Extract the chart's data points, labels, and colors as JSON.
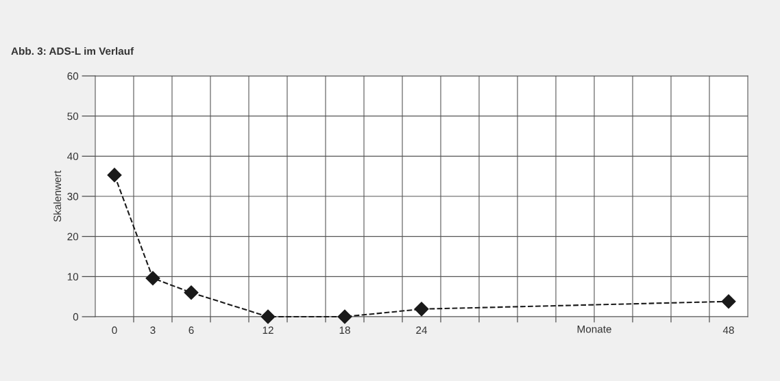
{
  "chart_data": {
    "type": "line",
    "title": "Abb. 3: ADS-L im Verlauf",
    "xlabel": "Monate",
    "ylabel": "Skalenwert",
    "x": [
      0,
      3,
      6,
      12,
      18,
      24,
      48
    ],
    "series": [
      {
        "color": "#1a1a1a",
        "values": [
          35.3,
          9.6,
          6.0,
          0,
          0,
          1.9,
          3.8
        ]
      }
    ],
    "xlim": [
      -1.5,
      49.5
    ],
    "xticks": [
      0,
      3,
      6,
      12,
      18,
      24,
      48,
      {
        "value": 1.5,
        "label": null
      },
      {
        "value": 4.5,
        "label": null
      },
      {
        "value": 7.5,
        "label": null
      },
      {
        "value": 10.5,
        "label": null
      },
      {
        "value": 13.5,
        "label": null
      },
      {
        "value": 16.5,
        "label": null
      },
      {
        "value": 19.5,
        "label": null
      },
      {
        "value": 22.5,
        "label": null
      },
      {
        "value": 25.5,
        "label": null
      },
      {
        "value": 28.5,
        "label": null
      },
      {
        "value": 31.5,
        "label": null
      },
      {
        "value": 34.5,
        "label": null
      },
      {
        "value": 37.5,
        "label": null
      },
      {
        "value": 40.5,
        "label": null
      },
      {
        "value": 43.5,
        "label": null
      },
      {
        "value": 46.5,
        "label": null
      }
    ],
    "ylim": [
      0,
      60
    ],
    "yticks": [
      0,
      10,
      20,
      30,
      40,
      50,
      60
    ],
    "grid": true,
    "legend": false,
    "marker": "diamond",
    "line_style": "dashed"
  }
}
